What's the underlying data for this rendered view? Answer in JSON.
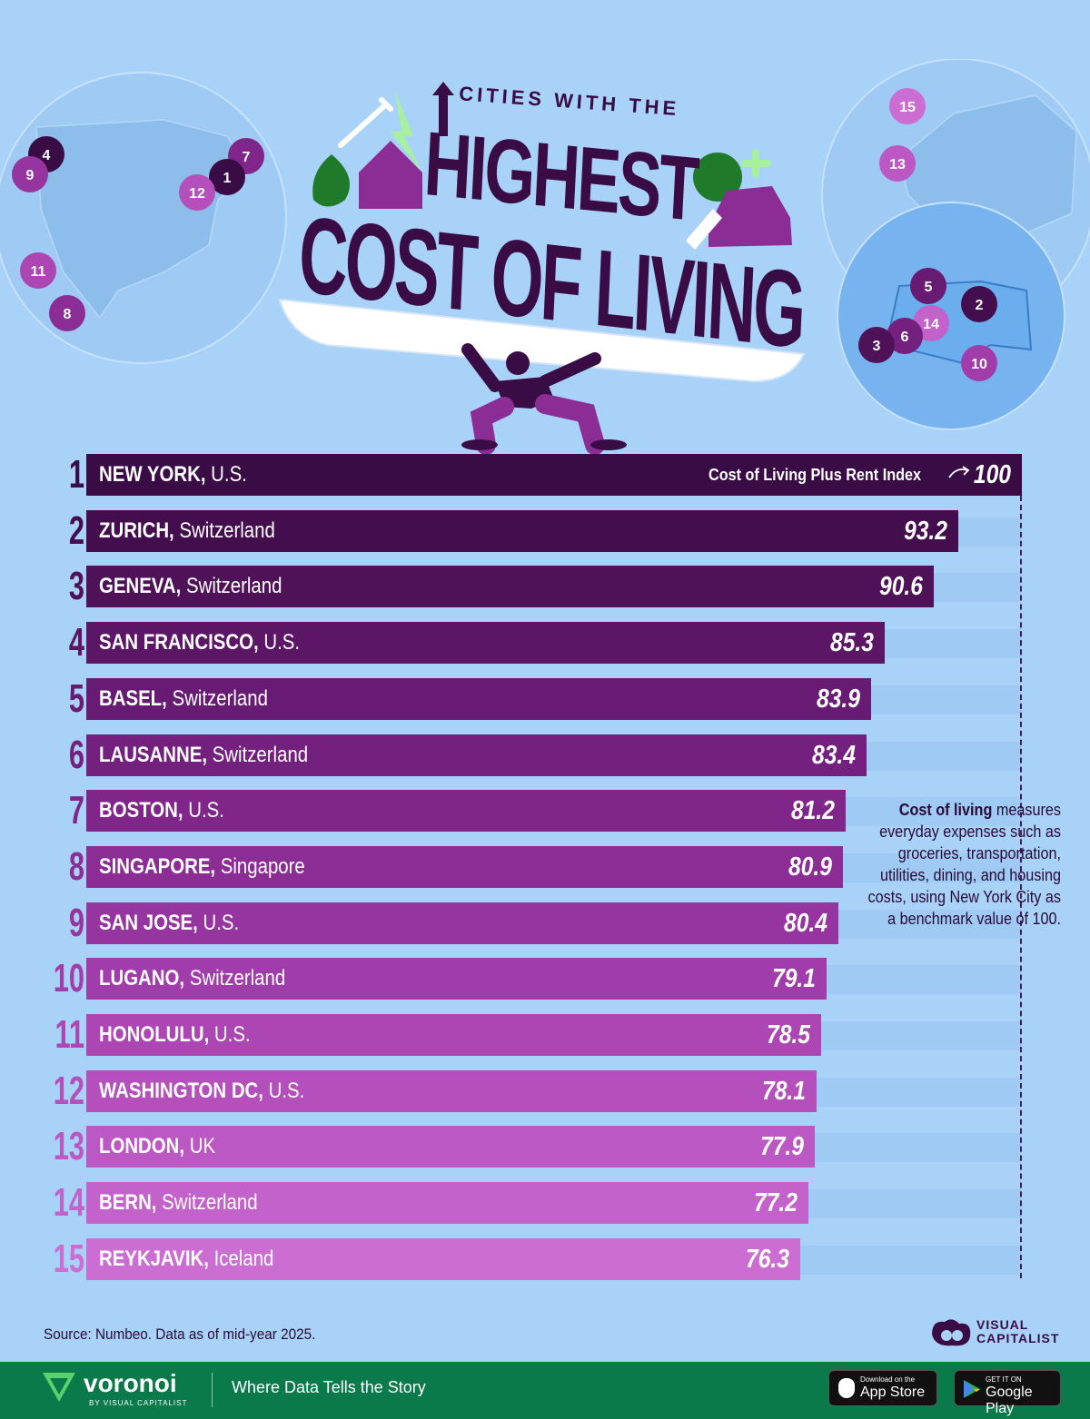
{
  "title": {
    "line1": "CITIES WITH THE",
    "line2": "HIGHEST",
    "line3": "COST OF LIVING"
  },
  "maps": {
    "americas_markers": [
      "4",
      "9",
      "7",
      "1",
      "12",
      "11",
      "8"
    ],
    "europe_markers": [
      "15",
      "13"
    ],
    "switzerland_markers": [
      "5",
      "2",
      "14",
      "6",
      "3",
      "10"
    ]
  },
  "index_label": "Cost of Living Plus Rent Index",
  "note": {
    "bold": "Cost of living",
    "text": " measures everyday expenses such as groceries, transportation, utilities, dining, and housing costs, using New York City as a benchmark value of 100."
  },
  "chart_data": {
    "type": "bar",
    "title": "CITIES WITH THE HIGHEST COST OF LIVING",
    "ylabel": "Cost of Living Plus Rent Index",
    "ylim": [
      0,
      100
    ],
    "rows": [
      {
        "rank": "1",
        "city": "NEW YORK,",
        "country": "U.S.",
        "value": 100,
        "label": "100",
        "color": "#3a0c45"
      },
      {
        "rank": "2",
        "city": "ZURICH,",
        "country": "Switzerland",
        "value": 93.2,
        "label": "93.2",
        "color": "#440e4e"
      },
      {
        "rank": "3",
        "city": "GENEVA,",
        "country": "Switzerland",
        "value": 90.6,
        "label": "90.6",
        "color": "#4f1259"
      },
      {
        "rank": "4",
        "city": "SAN FRANCISCO,",
        "country": "U.S.",
        "value": 85.3,
        "label": "85.3",
        "color": "#5b1666"
      },
      {
        "rank": "5",
        "city": "BASEL,",
        "country": "Switzerland",
        "value": 83.9,
        "label": "83.9",
        "color": "#671b72"
      },
      {
        "rank": "6",
        "city": "LAUSANNE,",
        "country": "Switzerland",
        "value": 83.4,
        "label": "83.4",
        "color": "#73207e"
      },
      {
        "rank": "7",
        "city": "BOSTON,",
        "country": "U.S.",
        "value": 81.2,
        "label": "81.2",
        "color": "#80268a"
      },
      {
        "rank": "8",
        "city": "SINGAPORE,",
        "country": "Singapore",
        "value": 80.9,
        "label": "80.9",
        "color": "#8b2d95"
      },
      {
        "rank": "9",
        "city": "SAN JOSE,",
        "country": "U.S.",
        "value": 80.4,
        "label": "80.4",
        "color": "#96359f"
      },
      {
        "rank": "10",
        "city": "LUGANO,",
        "country": "Switzerland",
        "value": 79.1,
        "label": "79.1",
        "color": "#a13daa"
      },
      {
        "rank": "11",
        "city": "HONOLULU,",
        "country": "U.S.",
        "value": 78.5,
        "label": "78.5",
        "color": "#ab46b3"
      },
      {
        "rank": "12",
        "city": "WASHINGTON DC,",
        "country": "U.S.",
        "value": 78.1,
        "label": "78.1",
        "color": "#b44fbb"
      },
      {
        "rank": "13",
        "city": "LONDON,",
        "country": "UK",
        "value": 77.9,
        "label": "77.9",
        "color": "#bc58c3"
      },
      {
        "rank": "14",
        "city": "BERN,",
        "country": "Switzerland",
        "value": 77.2,
        "label": "77.2",
        "color": "#c462cb"
      },
      {
        "rank": "15",
        "city": "REYKJAVIK,",
        "country": "Iceland",
        "value": 76.3,
        "label": "76.3",
        "color": "#cc6dd3"
      }
    ]
  },
  "source": "Source: Numbeo. Data as of mid-year 2025.",
  "brand": {
    "vc_line1": "VISUAL",
    "vc_line2": "CAPITALIST",
    "voronoi": "voronoi",
    "voronoi_by": "BY VISUAL CAPITALIST",
    "tagline": "Where Data Tells the Story",
    "appstore_small": "Download on the",
    "appstore_big": "App Store",
    "googleplay_small": "GET IT ON",
    "googleplay_big": "Google Play"
  },
  "colors": {
    "background": "#a9d2f8",
    "footer": "#0b7a4a",
    "title": "#3a0c45"
  }
}
